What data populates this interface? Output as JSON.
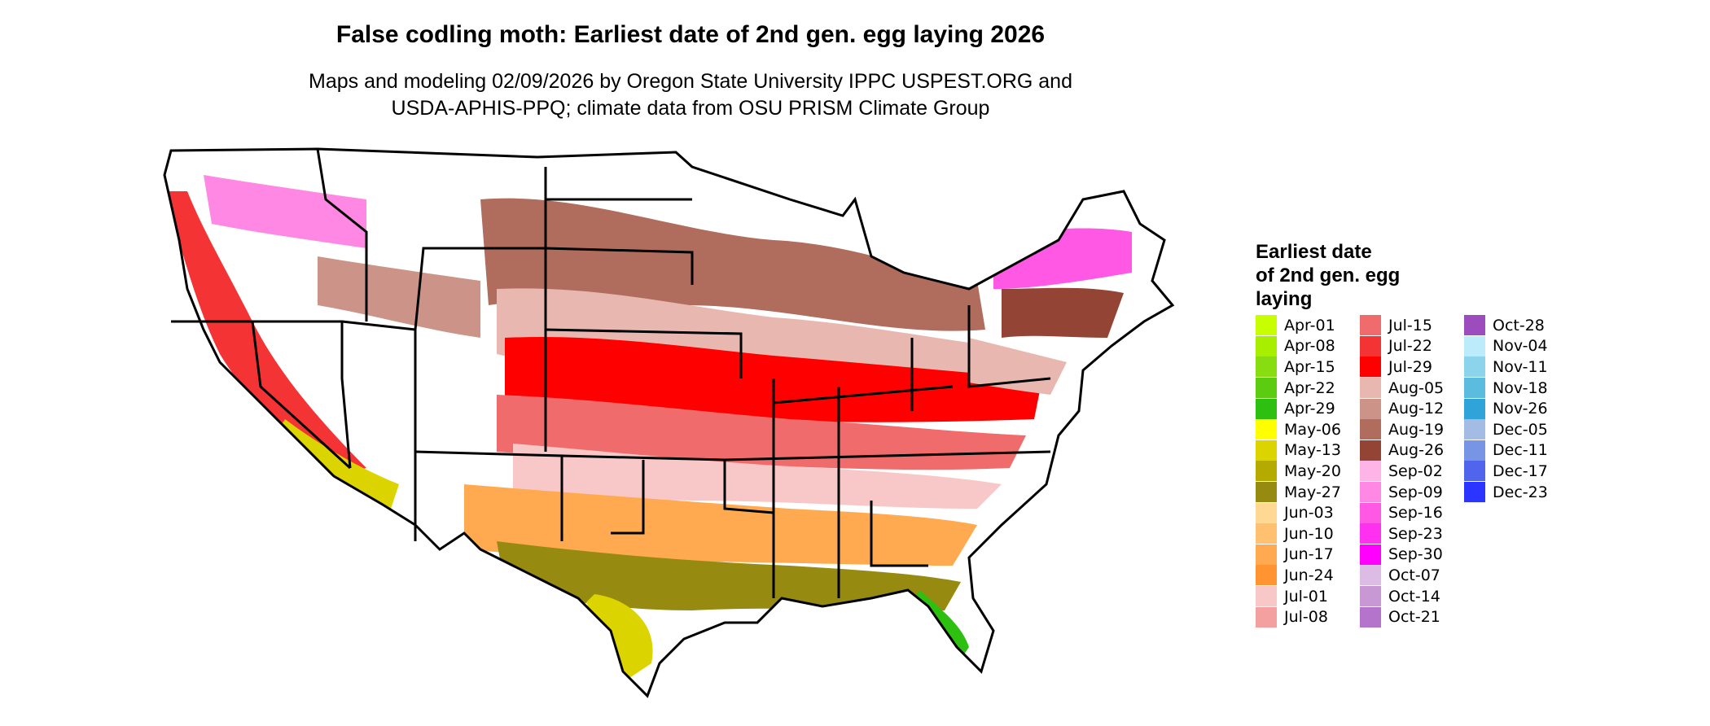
{
  "title": "False codling moth: Earliest date of 2nd gen. egg laying 2026",
  "subtitle_lines": [
    "Maps and modeling 02/09/2026 by Oregon State University IPPC USPEST.ORG and",
    "USDA-APHIS-PPQ; climate data from OSU PRISM Climate Group"
  ],
  "legend": {
    "title_lines": [
      "Earliest date",
      "of 2nd gen. egg",
      "laying"
    ],
    "columns": [
      [
        {
          "label": "Apr-01",
          "color": "#c8ff00"
        },
        {
          "label": "Apr-08",
          "color": "#a8ee00"
        },
        {
          "label": "Apr-15",
          "color": "#88dd10"
        },
        {
          "label": "Apr-22",
          "color": "#5ccc10"
        },
        {
          "label": "Apr-29",
          "color": "#2ec010"
        },
        {
          "label": "May-06",
          "color": "#ffff00"
        },
        {
          "label": "May-13",
          "color": "#dcd400"
        },
        {
          "label": "May-20",
          "color": "#b4aa00"
        },
        {
          "label": "May-27",
          "color": "#968a10"
        },
        {
          "label": "Jun-03",
          "color": "#ffd894"
        },
        {
          "label": "Jun-10",
          "color": "#ffc070"
        },
        {
          "label": "Jun-17",
          "color": "#ffaa50"
        },
        {
          "label": "Jun-24",
          "color": "#ff9430"
        },
        {
          "label": "Jul-01",
          "color": "#f8c8c8"
        },
        {
          "label": "Jul-08",
          "color": "#f4a0a0"
        }
      ],
      [
        {
          "label": "Jul-15",
          "color": "#f06c6c"
        },
        {
          "label": "Jul-22",
          "color": "#f43434"
        },
        {
          "label": "Jul-29",
          "color": "#ff0000"
        },
        {
          "label": "Aug-05",
          "color": "#e8b8b0"
        },
        {
          "label": "Aug-12",
          "color": "#cc9488"
        },
        {
          "label": "Aug-19",
          "color": "#b06c5c"
        },
        {
          "label": "Aug-26",
          "color": "#944434"
        },
        {
          "label": "Sep-02",
          "color": "#ffb4e8"
        },
        {
          "label": "Sep-09",
          "color": "#ff88e4"
        },
        {
          "label": "Sep-16",
          "color": "#ff58e4"
        },
        {
          "label": "Sep-23",
          "color": "#ff30f0"
        },
        {
          "label": "Sep-30",
          "color": "#ff00ff"
        },
        {
          "label": "Oct-07",
          "color": "#dcbce4"
        },
        {
          "label": "Oct-14",
          "color": "#c898d4"
        },
        {
          "label": "Oct-21",
          "color": "#b474cc"
        }
      ],
      [
        {
          "label": "Oct-28",
          "color": "#9c4cbc"
        },
        {
          "label": "Nov-04",
          "color": "#bcecfc"
        },
        {
          "label": "Nov-11",
          "color": "#8cd4ec"
        },
        {
          "label": "Nov-18",
          "color": "#5cbce0"
        },
        {
          "label": "Nov-26",
          "color": "#30a4d8"
        },
        {
          "label": "Dec-05",
          "color": "#a4bce4"
        },
        {
          "label": "Dec-11",
          "color": "#7894e4"
        },
        {
          "label": "Dec-17",
          "color": "#5064ec"
        },
        {
          "label": "Dec-23",
          "color": "#2c34ff"
        }
      ]
    ]
  }
}
